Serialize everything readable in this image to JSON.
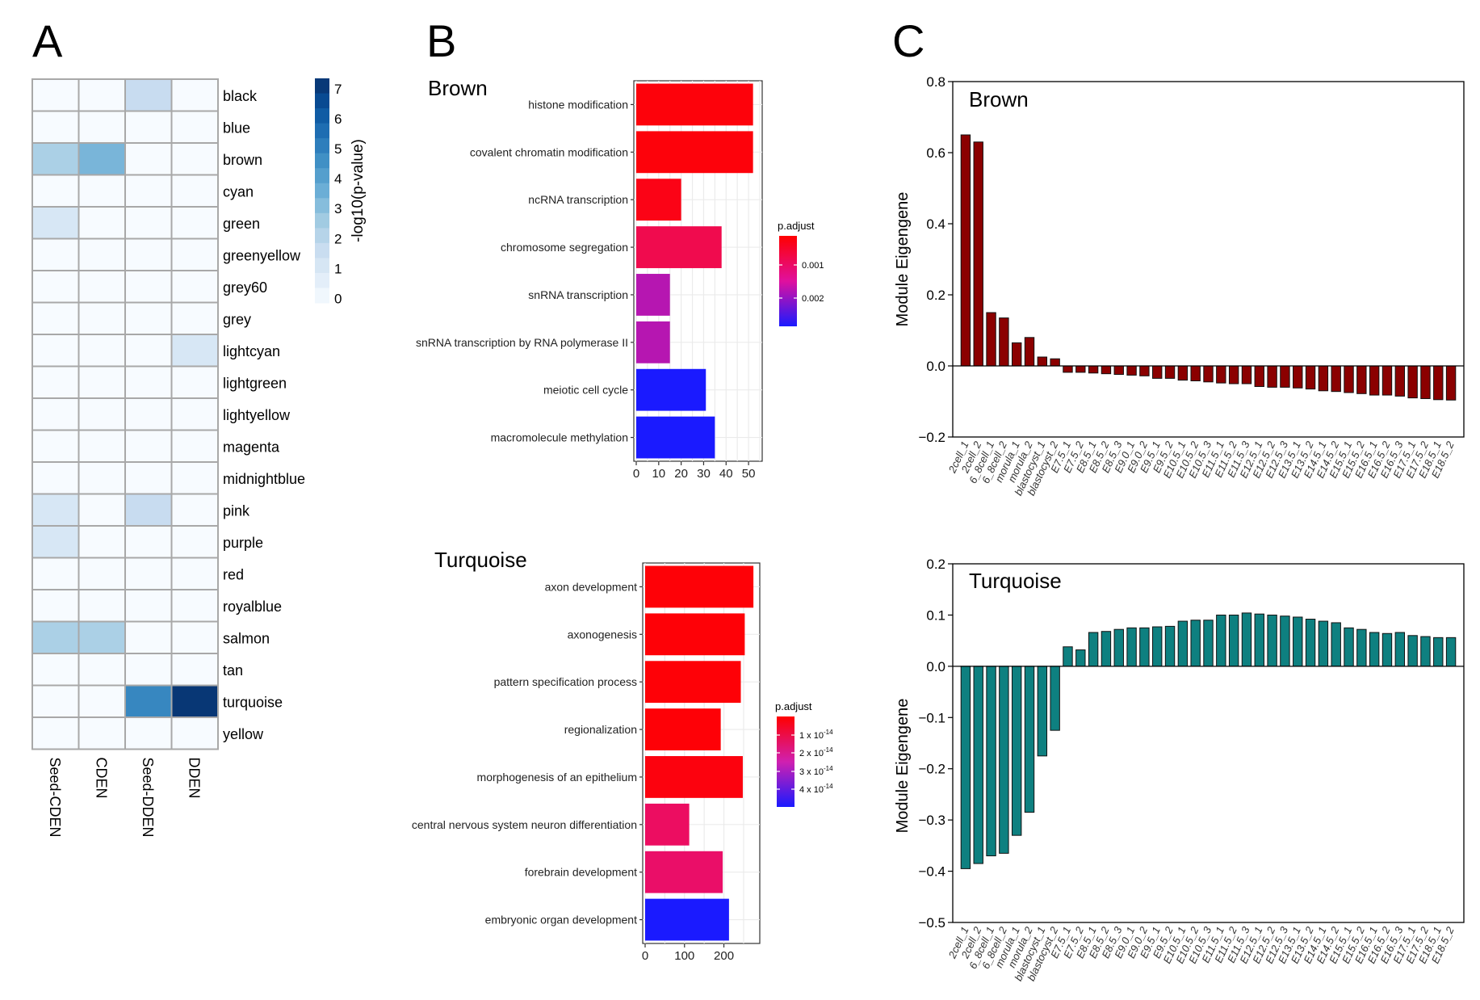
{
  "panels": {
    "A": "A",
    "B": "B",
    "C": "C"
  },
  "chart_data": [
    {
      "id": "A",
      "type": "heatmap",
      "columns": [
        "Seed-CDEN",
        "CDEN",
        "Seed-DDEN",
        "DDEN"
      ],
      "rows": [
        "black",
        "blue",
        "brown",
        "cyan",
        "green",
        "greenyellow",
        "grey60",
        "grey",
        "lightcyan",
        "lightgreen",
        "lightyellow",
        "magenta",
        "midnightblue",
        "pink",
        "purple",
        "red",
        "royalblue",
        "salmon",
        "tan",
        "turquoise",
        "yellow"
      ],
      "values": [
        [
          0,
          0,
          1.8,
          0
        ],
        [
          0,
          0,
          0,
          0
        ],
        [
          2.5,
          3.5,
          0,
          0
        ],
        [
          0,
          0,
          0,
          0
        ],
        [
          1.2,
          0,
          0,
          0
        ],
        [
          0,
          0,
          0,
          0
        ],
        [
          0,
          0,
          0,
          0
        ],
        [
          0,
          0,
          0,
          0
        ],
        [
          0,
          0,
          0,
          1.2
        ],
        [
          0,
          0,
          0,
          0
        ],
        [
          0,
          0,
          0,
          0
        ],
        [
          0,
          0,
          0,
          0
        ],
        [
          0,
          0,
          0,
          0
        ],
        [
          1.2,
          0,
          1.8,
          0
        ],
        [
          1.2,
          0,
          0,
          0
        ],
        [
          0,
          0,
          0,
          0
        ],
        [
          0,
          0,
          0,
          0
        ],
        [
          2.5,
          2.5,
          0,
          0
        ],
        [
          0,
          0,
          0,
          0
        ],
        [
          0,
          0,
          5.0,
          7.3
        ],
        [
          0,
          0,
          0,
          0
        ]
      ],
      "colorbar": {
        "label": "-log10(p-value)",
        "ticks": [
          "0",
          "1",
          "2",
          "3",
          "4",
          "5",
          "6",
          "7"
        ],
        "range": [
          0,
          7.5
        ],
        "colors": [
          "#f7fbff",
          "#deebf7",
          "#c6dbef",
          "#9ecae1",
          "#6baed6",
          "#4292c6",
          "#2171b5",
          "#08519c",
          "#08306b"
        ]
      }
    },
    {
      "id": "B-brown",
      "type": "bar",
      "orientation": "horizontal",
      "title": "Brown",
      "categories": [
        "histone modification",
        "covalent chromatin modification",
        "ncRNA transcription",
        "chromosome segregation",
        "snRNA transcription",
        "snRNA transcription by RNA polymerase II",
        "meiotic cell cycle",
        "macromolecule methylation"
      ],
      "values": [
        52,
        52,
        20,
        38,
        15,
        15,
        31,
        35
      ],
      "p_adjust": [
        0.0002,
        0.0002,
        0.0003,
        0.0008,
        0.0018,
        0.0018,
        0.0029,
        0.0029
      ],
      "xlim": [
        0,
        55
      ],
      "xticks": [
        "0",
        "10",
        "20",
        "30",
        "40",
        "50"
      ],
      "legend": {
        "title": "p.adjust",
        "ticks": [
          "0.001",
          "0.002"
        ],
        "range": [
          0.0001,
          0.0029
        ]
      }
    },
    {
      "id": "B-turquoise",
      "type": "bar",
      "orientation": "horizontal",
      "title": "Turquoise",
      "categories": [
        "axon development",
        "axonogenesis",
        "pattern specification process",
        "regionalization",
        "morphogenesis of an epithelium",
        "central nervous system neuron differentiation",
        "forebrain development",
        "embryonic organ development"
      ],
      "values": [
        275,
        253,
        243,
        192,
        248,
        112,
        197,
        213
      ],
      "p_adjust": [
        2e-15,
        2e-15,
        2e-15,
        2e-15,
        3e-15,
        1.5e-14,
        1.6e-14,
        4.6e-14
      ],
      "xlim": [
        0,
        285
      ],
      "xticks": [
        "0",
        "100",
        "200"
      ],
      "legend": {
        "title": "p.adjust",
        "ticks": [
          "1 x 10",
          "2 x 10",
          "3 x 10",
          "4 x 10"
        ],
        "exponent": "-14",
        "range": [
          1e-15,
          4.6e-14
        ]
      }
    },
    {
      "id": "C-brown",
      "type": "bar",
      "title": "Brown",
      "ylabel": "Module Eigengene",
      "color": "#8b0000",
      "ylim": [
        -0.2,
        0.8
      ],
      "yticks": [
        "0.8",
        "0.6",
        "0.4",
        "0.2",
        "0.0",
        "−0.2"
      ],
      "categories": [
        "2cell_1",
        "2cell_2",
        "6_8cell_1",
        "6_8cell_2",
        "morula_1",
        "morula_2",
        "blastocyst_1",
        "blastocyst_2",
        "E7.5_1",
        "E7.5_2",
        "E8.5_1",
        "E8.5_2",
        "E8.5_3",
        "E9.0_1",
        "E9.0_2",
        "E9.5_1",
        "E9.5_2",
        "E10.5_1",
        "E10.5_2",
        "E10.5_3",
        "E11.5_1",
        "E11.5_2",
        "E11.5_3",
        "E12.5_1",
        "E12.5_2",
        "E12.5_3",
        "E13.5_1",
        "E13.5_2",
        "E14.5_1",
        "E14.5_2",
        "E15.5_1",
        "E15.5_2",
        "E16.5_1",
        "E16.5_2",
        "E16.5_3",
        "E17.5_1",
        "E17.5_2",
        "E18.5_1",
        "E18.5_2"
      ],
      "values": [
        0.65,
        0.63,
        0.15,
        0.135,
        0.065,
        0.08,
        0.025,
        0.02,
        -0.018,
        -0.018,
        -0.02,
        -0.022,
        -0.024,
        -0.026,
        -0.028,
        -0.035,
        -0.035,
        -0.04,
        -0.042,
        -0.045,
        -0.048,
        -0.05,
        -0.05,
        -0.058,
        -0.06,
        -0.06,
        -0.062,
        -0.065,
        -0.07,
        -0.072,
        -0.075,
        -0.078,
        -0.082,
        -0.082,
        -0.085,
        -0.09,
        -0.092,
        -0.095,
        -0.096
      ]
    },
    {
      "id": "C-turquoise",
      "type": "bar",
      "title": "Turquoise",
      "ylabel": "Module Eigengene",
      "color": "#0e8080",
      "ylim": [
        -0.5,
        0.2
      ],
      "yticks": [
        "0.2",
        "0.1",
        "0.0",
        "−0.1",
        "−0.2",
        "−0.3",
        "−0.4",
        "−0.5"
      ],
      "categories": [
        "2cell_1",
        "2cell_2",
        "6_8cell_1",
        "6_8cell_2",
        "morula_1",
        "morula_2",
        "blastocyst_1",
        "blastocyst_2",
        "E7.5_1",
        "E7.5_2",
        "E8.5_1",
        "E8.5_2",
        "E8.5_3",
        "E9.0_1",
        "E9.0_2",
        "E9.5_1",
        "E9.5_2",
        "E10.5_1",
        "E10.5_2",
        "E10.5_3",
        "E11.5_1",
        "E11.5_2",
        "E11.5_3",
        "E12.5_1",
        "E12.5_2",
        "E12.5_3",
        "E13.5_1",
        "E13.5_2",
        "E14.5_1",
        "E14.5_2",
        "E15.5_1",
        "E15.5_2",
        "E16.5_1",
        "E16.5_2",
        "E16.5_3",
        "E17.5_1",
        "E17.5_2",
        "E18.5_1",
        "E18.5_2"
      ],
      "values": [
        -0.395,
        -0.385,
        -0.37,
        -0.365,
        -0.33,
        -0.285,
        -0.175,
        -0.125,
        0.038,
        0.032,
        0.066,
        0.068,
        0.072,
        0.075,
        0.075,
        0.077,
        0.078,
        0.088,
        0.09,
        0.09,
        0.1,
        0.1,
        0.104,
        0.102,
        0.1,
        0.098,
        0.096,
        0.092,
        0.088,
        0.085,
        0.075,
        0.072,
        0.066,
        0.064,
        0.066,
        0.06,
        0.058,
        0.056,
        0.056
      ]
    }
  ]
}
